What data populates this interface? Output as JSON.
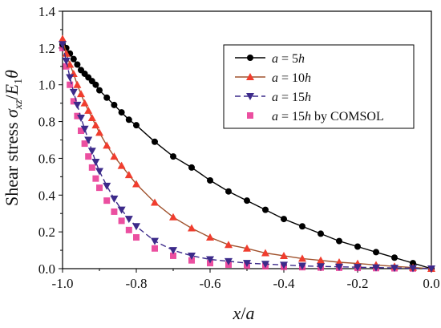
{
  "chart_data": {
    "type": "line",
    "title": "",
    "xlabel": {
      "var": "x",
      "sep": "/",
      "den": "a"
    },
    "ylabel": {
      "text": "Shear stress ",
      "sigma": "σ",
      "sub_xz": "xz",
      "slash": "/",
      "E": "E",
      "sub_1": "1",
      "theta": "θ"
    },
    "xlim": [
      -1.0,
      0.0
    ],
    "ylim": [
      0.0,
      1.4
    ],
    "xticks": [
      "-1.0",
      "-0.8",
      "-0.6",
      "-0.4",
      "-0.2",
      "0.0"
    ],
    "xtick_values": [
      -1.0,
      -0.8,
      -0.6,
      -0.4,
      -0.2,
      0.0
    ],
    "yticks": [
      "0.0",
      "0.2",
      "0.4",
      "0.6",
      "0.8",
      "1.0",
      "1.2",
      "1.4"
    ],
    "ytick_values": [
      0.0,
      0.2,
      0.4,
      0.6,
      0.8,
      1.0,
      1.2,
      1.4
    ],
    "grid": false,
    "legend_position": "top-right",
    "series": [
      {
        "name": "a = 5h",
        "label_parts": [
          "a",
          " = 5",
          "h",
          ""
        ],
        "color": "#000000",
        "line": "solid",
        "marker": "circle",
        "x": [
          -1.0,
          -0.99,
          -0.98,
          -0.97,
          -0.96,
          -0.95,
          -0.94,
          -0.93,
          -0.92,
          -0.91,
          -0.9,
          -0.88,
          -0.86,
          -0.84,
          -0.82,
          -0.8,
          -0.75,
          -0.7,
          -0.65,
          -0.6,
          -0.55,
          -0.5,
          -0.45,
          -0.4,
          -0.35,
          -0.3,
          -0.25,
          -0.2,
          -0.15,
          -0.1,
          -0.05,
          0.0
        ],
        "y": [
          1.22,
          1.2,
          1.17,
          1.14,
          1.11,
          1.08,
          1.06,
          1.04,
          1.02,
          1.0,
          0.97,
          0.93,
          0.89,
          0.85,
          0.81,
          0.78,
          0.69,
          0.61,
          0.55,
          0.48,
          0.42,
          0.37,
          0.32,
          0.27,
          0.23,
          0.19,
          0.15,
          0.12,
          0.09,
          0.06,
          0.03,
          0.0
        ]
      },
      {
        "name": "a = 10h",
        "label_parts": [
          "a",
          " = 10",
          "h",
          ""
        ],
        "color": "#f03d2e",
        "line_color": "#a0522d",
        "line": "solid",
        "marker": "triangle-up",
        "x": [
          -1.0,
          -0.99,
          -0.98,
          -0.97,
          -0.96,
          -0.95,
          -0.94,
          -0.93,
          -0.92,
          -0.91,
          -0.9,
          -0.88,
          -0.86,
          -0.84,
          -0.82,
          -0.8,
          -0.75,
          -0.7,
          -0.65,
          -0.6,
          -0.55,
          -0.5,
          -0.45,
          -0.4,
          -0.35,
          -0.3,
          -0.25,
          -0.2,
          -0.15,
          -0.1,
          -0.05,
          0.0
        ],
        "y": [
          1.25,
          1.17,
          1.11,
          1.06,
          1.0,
          0.95,
          0.9,
          0.86,
          0.82,
          0.78,
          0.74,
          0.67,
          0.61,
          0.56,
          0.51,
          0.46,
          0.36,
          0.28,
          0.22,
          0.17,
          0.13,
          0.11,
          0.085,
          0.07,
          0.055,
          0.045,
          0.035,
          0.028,
          0.02,
          0.012,
          0.006,
          0.0
        ]
      },
      {
        "name": "a = 15h",
        "label_parts": [
          "a",
          " = 15",
          "h",
          ""
        ],
        "color": "#3c2a8a",
        "line": "dashed",
        "marker": "triangle-down",
        "x": [
          -1.0,
          -0.99,
          -0.98,
          -0.97,
          -0.96,
          -0.95,
          -0.94,
          -0.93,
          -0.92,
          -0.91,
          -0.9,
          -0.88,
          -0.86,
          -0.84,
          -0.82,
          -0.8,
          -0.75,
          -0.7,
          -0.65,
          -0.6,
          -0.55,
          -0.5,
          -0.45,
          -0.4,
          -0.35,
          -0.3,
          -0.25,
          -0.2,
          -0.15,
          -0.1,
          -0.05,
          0.0
        ],
        "y": [
          1.22,
          1.13,
          1.04,
          0.96,
          0.89,
          0.82,
          0.76,
          0.7,
          0.64,
          0.58,
          0.53,
          0.45,
          0.38,
          0.32,
          0.27,
          0.23,
          0.15,
          0.1,
          0.07,
          0.05,
          0.04,
          0.03,
          0.025,
          0.02,
          0.015,
          0.012,
          0.01,
          0.008,
          0.006,
          0.004,
          0.002,
          0.0
        ]
      },
      {
        "name": "a = 15h by COMSOL",
        "label_parts": [
          "a",
          " = 15",
          "h",
          " by COMSOL"
        ],
        "color": "#e8308f",
        "marker": "square",
        "line": "none",
        "x": [
          -1.0,
          -0.99,
          -0.98,
          -0.97,
          -0.96,
          -0.95,
          -0.94,
          -0.93,
          -0.92,
          -0.91,
          -0.9,
          -0.88,
          -0.86,
          -0.84,
          -0.82,
          -0.8,
          -0.75,
          -0.7,
          -0.65,
          -0.6,
          -0.55,
          -0.5,
          -0.45,
          -0.4,
          -0.35,
          -0.3,
          -0.25,
          -0.2,
          -0.15,
          -0.1,
          -0.05,
          0.0
        ],
        "y": [
          1.2,
          1.1,
          1.0,
          0.91,
          0.83,
          0.75,
          0.68,
          0.61,
          0.55,
          0.49,
          0.44,
          0.37,
          0.31,
          0.26,
          0.21,
          0.17,
          0.11,
          0.07,
          0.045,
          0.03,
          0.022,
          0.017,
          0.013,
          0.01,
          0.008,
          0.006,
          0.005,
          0.004,
          0.003,
          0.002,
          0.001,
          0.0
        ]
      }
    ]
  }
}
